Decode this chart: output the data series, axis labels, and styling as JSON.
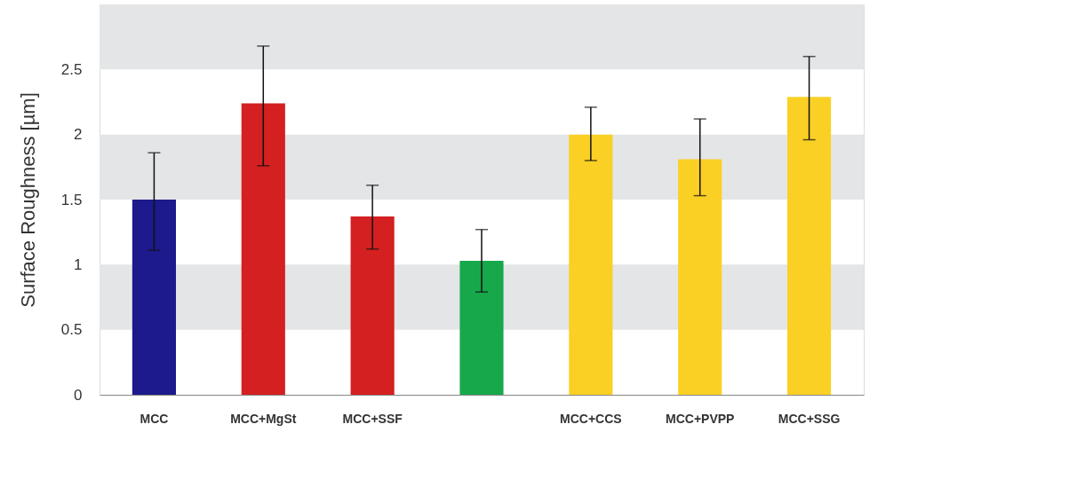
{
  "chart_data": {
    "type": "bar",
    "ylabel": "Surface Roughness [µm]",
    "categories": [
      "MCC",
      "MCC+MgSt",
      "MCC+SSF",
      null,
      "MCC+CCS",
      "MCC+PVPP",
      "MCC+SSG"
    ],
    "values": [
      1.5,
      2.24,
      1.37,
      1.03,
      2.0,
      1.81,
      2.29
    ],
    "colors": [
      "#1c1a8c",
      "#d42020",
      "#d42020",
      "#17a84b",
      "#fbd024",
      "#fbd024",
      "#fbd024"
    ],
    "errors": [
      [
        1.11,
        1.86
      ],
      [
        1.76,
        2.68
      ],
      [
        1.12,
        1.61
      ],
      [
        0.79,
        1.27
      ],
      [
        1.8,
        2.21
      ],
      [
        1.53,
        2.12
      ],
      [
        1.96,
        2.6
      ]
    ],
    "ylim": [
      0,
      3
    ],
    "yticks": [
      0,
      0.5,
      1,
      1.5,
      2,
      2.5
    ],
    "grid": false,
    "bands": [
      {
        "axis": "y",
        "from": 0.5,
        "to": 1,
        "color": "#e4e5e7"
      },
      {
        "axis": "y",
        "from": 1.5,
        "to": 2,
        "color": "#e4e5e7"
      },
      {
        "axis": "y",
        "from": 2.5,
        "to": 3,
        "color": "#e4e5e7"
      }
    ]
  }
}
